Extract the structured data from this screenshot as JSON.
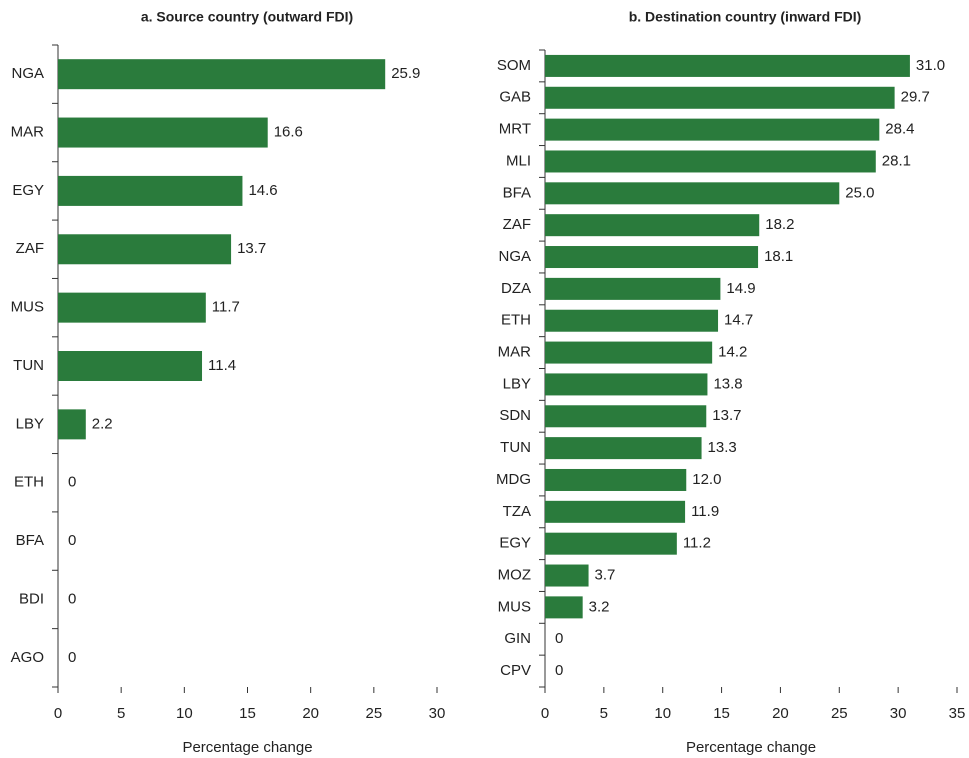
{
  "chart_data": [
    {
      "type": "hbar",
      "title": "a. Source country (outward FDI)",
      "x_label": "Percentage change",
      "categories": [
        "NGA",
        "MAR",
        "EGY",
        "ZAF",
        "MUS",
        "TUN",
        "LBY",
        "ETH",
        "BFA",
        "BDI",
        "AGO"
      ],
      "values": [
        25.9,
        16.6,
        14.6,
        13.7,
        11.7,
        11.4,
        2.2,
        0,
        0,
        0,
        0
      ],
      "color": "#2a7b3c",
      "xlim": [
        0,
        30
      ],
      "xticks": [
        0,
        5,
        10,
        15,
        20,
        25,
        30
      ]
    },
    {
      "type": "hbar",
      "title": "b. Destination country (inward FDI)",
      "x_label": "Percentage change",
      "categories": [
        "SOM",
        "GAB",
        "MRT",
        "MLI",
        "BFA",
        "ZAF",
        "NGA",
        "DZA",
        "ETH",
        "MAR",
        "LBY",
        "SDN",
        "TUN",
        "MDG",
        "TZA",
        "EGY",
        "MOZ",
        "MUS",
        "GIN",
        "CPV"
      ],
      "values": [
        31.0,
        29.7,
        28.4,
        28.1,
        25.0,
        18.2,
        18.1,
        14.9,
        14.7,
        14.2,
        13.8,
        13.7,
        13.3,
        12.0,
        11.9,
        11.2,
        3.7,
        3.2,
        0,
        0
      ],
      "value_labels": [
        "31.0",
        "29.7",
        "28.4",
        "28.1",
        "25.0",
        "18.2",
        "18.1",
        "14.9",
        "14.7",
        "14.2",
        "13.8",
        "13.7",
        "13.3",
        "12.0",
        "11.9",
        "11.2",
        "3.7",
        "3.2",
        "0",
        "0"
      ],
      "color": "#2a7b3c",
      "xlim": [
        0,
        35
      ],
      "xticks": [
        0,
        5,
        10,
        15,
        20,
        25,
        30,
        35
      ]
    }
  ]
}
